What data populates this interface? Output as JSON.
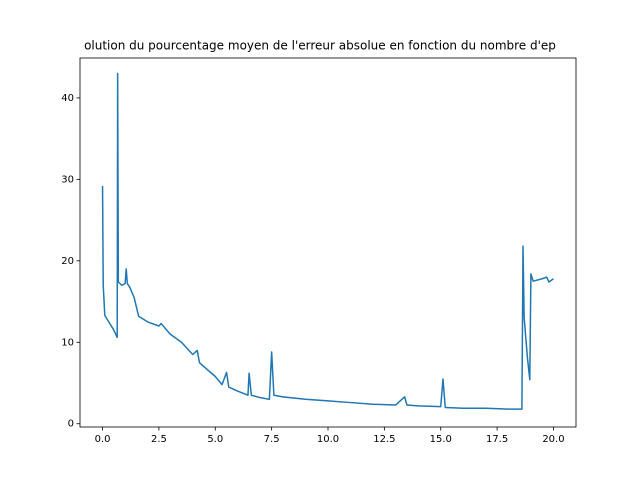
{
  "chart_data": {
    "type": "line",
    "title": "olution du pourcentage moyen de l'erreur absolue en fonction du nombre d'ep",
    "x": [
      0,
      0.03,
      0.1,
      0.3,
      0.5,
      0.65,
      0.67,
      0.7,
      0.85,
      1.0,
      1.05,
      1.1,
      1.2,
      1.4,
      1.6,
      2.0,
      2.5,
      2.6,
      3.0,
      3.5,
      4.0,
      4.2,
      4.3,
      4.5,
      5.0,
      5.3,
      5.5,
      5.6,
      6.0,
      6.45,
      6.5,
      6.6,
      7.0,
      7.4,
      7.5,
      7.6,
      8.0,
      9.0,
      10.0,
      11.0,
      12.0,
      13.0,
      13.4,
      13.5,
      14.0,
      15.0,
      15.1,
      15.2,
      16.0,
      17.0,
      18.0,
      18.6,
      18.65,
      18.7,
      18.85,
      18.95,
      19.0,
      19.1,
      19.5,
      19.7,
      19.8,
      20.0
    ],
    "series": [
      {
        "color": "#1f77b4",
        "values": [
          29.2,
          17.0,
          13.3,
          12.4,
          11.5,
          10.6,
          43.0,
          17.4,
          17.0,
          17.2,
          19.0,
          17.2,
          16.8,
          15.5,
          13.2,
          12.5,
          12.0,
          12.3,
          11.0,
          10.0,
          8.5,
          9.0,
          7.5,
          7.0,
          5.8,
          4.8,
          6.3,
          4.5,
          4.0,
          3.5,
          6.2,
          3.5,
          3.2,
          3.0,
          8.8,
          3.5,
          3.3,
          3.0,
          2.8,
          2.6,
          2.4,
          2.3,
          3.3,
          2.3,
          2.2,
          2.1,
          5.5,
          2.0,
          1.9,
          1.9,
          1.8,
          1.8,
          21.8,
          13.0,
          8.0,
          5.4,
          18.4,
          17.5,
          17.8,
          18.0,
          17.4,
          17.8
        ]
      }
    ],
    "xlim": [
      -1,
      21
    ],
    "ylim": [
      -0.4,
      44.9
    ],
    "xticks": [
      {
        "value": 0,
        "label": "0.0"
      },
      2.5,
      {
        "value": 5,
        "label": "5.0"
      },
      7.5,
      {
        "value": 10,
        "label": "10.0"
      },
      12.5,
      {
        "value": 15,
        "label": "15.0"
      },
      17.5,
      {
        "value": 20,
        "label": "20.0"
      }
    ],
    "yticks": [
      0,
      10,
      20,
      30,
      40
    ],
    "grid": false
  }
}
